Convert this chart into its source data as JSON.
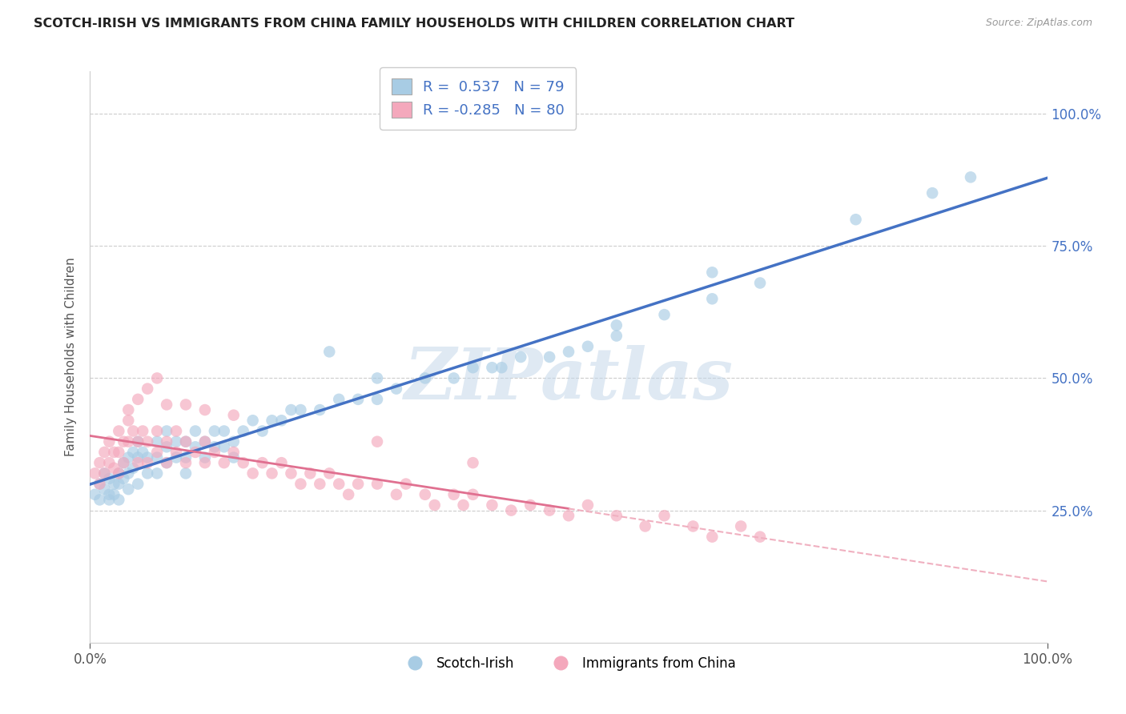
{
  "title": "SCOTCH-IRISH VS IMMIGRANTS FROM CHINA FAMILY HOUSEHOLDS WITH CHILDREN CORRELATION CHART",
  "source": "Source: ZipAtlas.com",
  "ylabel": "Family Households with Children",
  "legend_label1": "Scotch-Irish",
  "legend_label2": "Immigrants from China",
  "R1": 0.537,
  "N1": 79,
  "R2": -0.285,
  "N2": 80,
  "blue_color": "#a8cce4",
  "pink_color": "#f4a8bc",
  "blue_line_color": "#4472c4",
  "pink_line_color": "#e07090",
  "pink_dash_color": "#f0b0c0",
  "axis_label_color": "#4472c4",
  "ytick_values": [
    0.25,
    0.5,
    0.75,
    1.0
  ],
  "ytick_labels": [
    "25.0%",
    "50.0%",
    "75.0%",
    "100.0%"
  ],
  "background_color": "#ffffff",
  "watermark": "ZIPatlas",
  "grid_color": "#cccccc",
  "blue_scatter_x": [
    0.005,
    0.01,
    0.01,
    0.015,
    0.015,
    0.02,
    0.02,
    0.02,
    0.025,
    0.025,
    0.03,
    0.03,
    0.03,
    0.035,
    0.035,
    0.04,
    0.04,
    0.04,
    0.045,
    0.045,
    0.05,
    0.05,
    0.05,
    0.055,
    0.06,
    0.06,
    0.07,
    0.07,
    0.07,
    0.08,
    0.08,
    0.08,
    0.09,
    0.09,
    0.1,
    0.1,
    0.1,
    0.11,
    0.11,
    0.12,
    0.12,
    0.13,
    0.13,
    0.14,
    0.14,
    0.15,
    0.15,
    0.16,
    0.17,
    0.18,
    0.19,
    0.2,
    0.21,
    0.22,
    0.24,
    0.26,
    0.28,
    0.3,
    0.32,
    0.35,
    0.38,
    0.4,
    0.43,
    0.45,
    0.48,
    0.52,
    0.55,
    0.6,
    0.65,
    0.7,
    0.25,
    0.3,
    0.42,
    0.5,
    0.55,
    0.65,
    0.8,
    0.88,
    0.92
  ],
  "blue_scatter_y": [
    0.28,
    0.3,
    0.27,
    0.32,
    0.29,
    0.28,
    0.31,
    0.27,
    0.3,
    0.28,
    0.32,
    0.3,
    0.27,
    0.34,
    0.31,
    0.35,
    0.32,
    0.29,
    0.36,
    0.33,
    0.38,
    0.35,
    0.3,
    0.36,
    0.35,
    0.32,
    0.38,
    0.35,
    0.32,
    0.4,
    0.37,
    0.34,
    0.38,
    0.35,
    0.38,
    0.35,
    0.32,
    0.4,
    0.37,
    0.38,
    0.35,
    0.4,
    0.37,
    0.4,
    0.37,
    0.38,
    0.35,
    0.4,
    0.42,
    0.4,
    0.42,
    0.42,
    0.44,
    0.44,
    0.44,
    0.46,
    0.46,
    0.46,
    0.48,
    0.5,
    0.5,
    0.52,
    0.52,
    0.54,
    0.54,
    0.56,
    0.58,
    0.62,
    0.65,
    0.68,
    0.55,
    0.5,
    0.52,
    0.55,
    0.6,
    0.7,
    0.8,
    0.85,
    0.88
  ],
  "pink_scatter_x": [
    0.005,
    0.01,
    0.01,
    0.015,
    0.015,
    0.02,
    0.02,
    0.025,
    0.025,
    0.03,
    0.03,
    0.03,
    0.035,
    0.035,
    0.04,
    0.04,
    0.045,
    0.05,
    0.05,
    0.055,
    0.06,
    0.06,
    0.07,
    0.07,
    0.08,
    0.08,
    0.09,
    0.09,
    0.1,
    0.1,
    0.11,
    0.12,
    0.12,
    0.13,
    0.14,
    0.15,
    0.16,
    0.17,
    0.18,
    0.19,
    0.2,
    0.21,
    0.22,
    0.23,
    0.24,
    0.25,
    0.26,
    0.27,
    0.28,
    0.3,
    0.32,
    0.33,
    0.35,
    0.36,
    0.38,
    0.39,
    0.4,
    0.42,
    0.44,
    0.46,
    0.48,
    0.5,
    0.52,
    0.55,
    0.58,
    0.6,
    0.63,
    0.65,
    0.68,
    0.7,
    0.04,
    0.05,
    0.06,
    0.07,
    0.08,
    0.1,
    0.12,
    0.15,
    0.3,
    0.4
  ],
  "pink_scatter_y": [
    0.32,
    0.34,
    0.3,
    0.36,
    0.32,
    0.38,
    0.34,
    0.36,
    0.33,
    0.4,
    0.36,
    0.32,
    0.38,
    0.34,
    0.42,
    0.38,
    0.4,
    0.38,
    0.34,
    0.4,
    0.38,
    0.34,
    0.4,
    0.36,
    0.38,
    0.34,
    0.4,
    0.36,
    0.38,
    0.34,
    0.36,
    0.38,
    0.34,
    0.36,
    0.34,
    0.36,
    0.34,
    0.32,
    0.34,
    0.32,
    0.34,
    0.32,
    0.3,
    0.32,
    0.3,
    0.32,
    0.3,
    0.28,
    0.3,
    0.3,
    0.28,
    0.3,
    0.28,
    0.26,
    0.28,
    0.26,
    0.28,
    0.26,
    0.25,
    0.26,
    0.25,
    0.24,
    0.26,
    0.24,
    0.22,
    0.24,
    0.22,
    0.2,
    0.22,
    0.2,
    0.44,
    0.46,
    0.48,
    0.5,
    0.45,
    0.45,
    0.44,
    0.43,
    0.38,
    0.34
  ]
}
